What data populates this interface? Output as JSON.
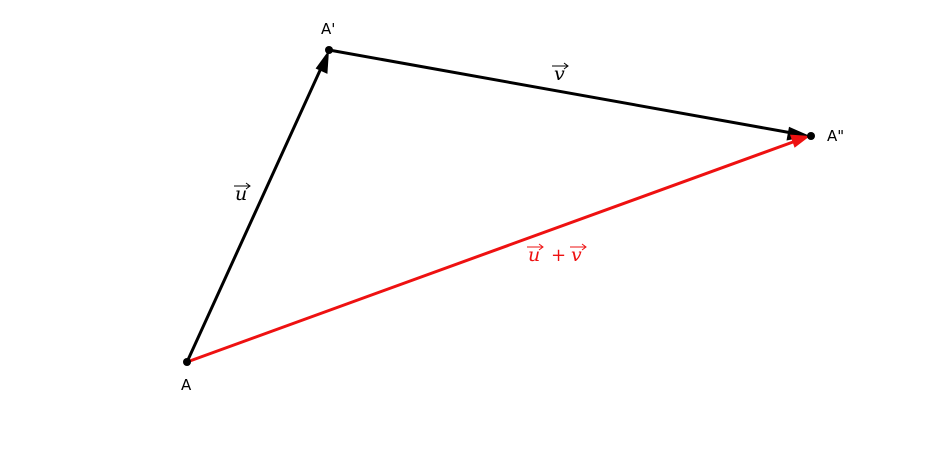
{
  "points": {
    "A": "A",
    "A1": "A'",
    "A2": "A\""
  },
  "vectors": {
    "u": {
      "label": "u",
      "color": "#000000"
    },
    "v": {
      "label": "v",
      "color": "#000000"
    },
    "sum": {
      "label_u": "u",
      "operator": "+",
      "label_v": "v",
      "color": "#ee1111"
    }
  },
  "colors": {
    "primary": "#000000",
    "sum": "#ee1111",
    "background": "#ffffff"
  }
}
